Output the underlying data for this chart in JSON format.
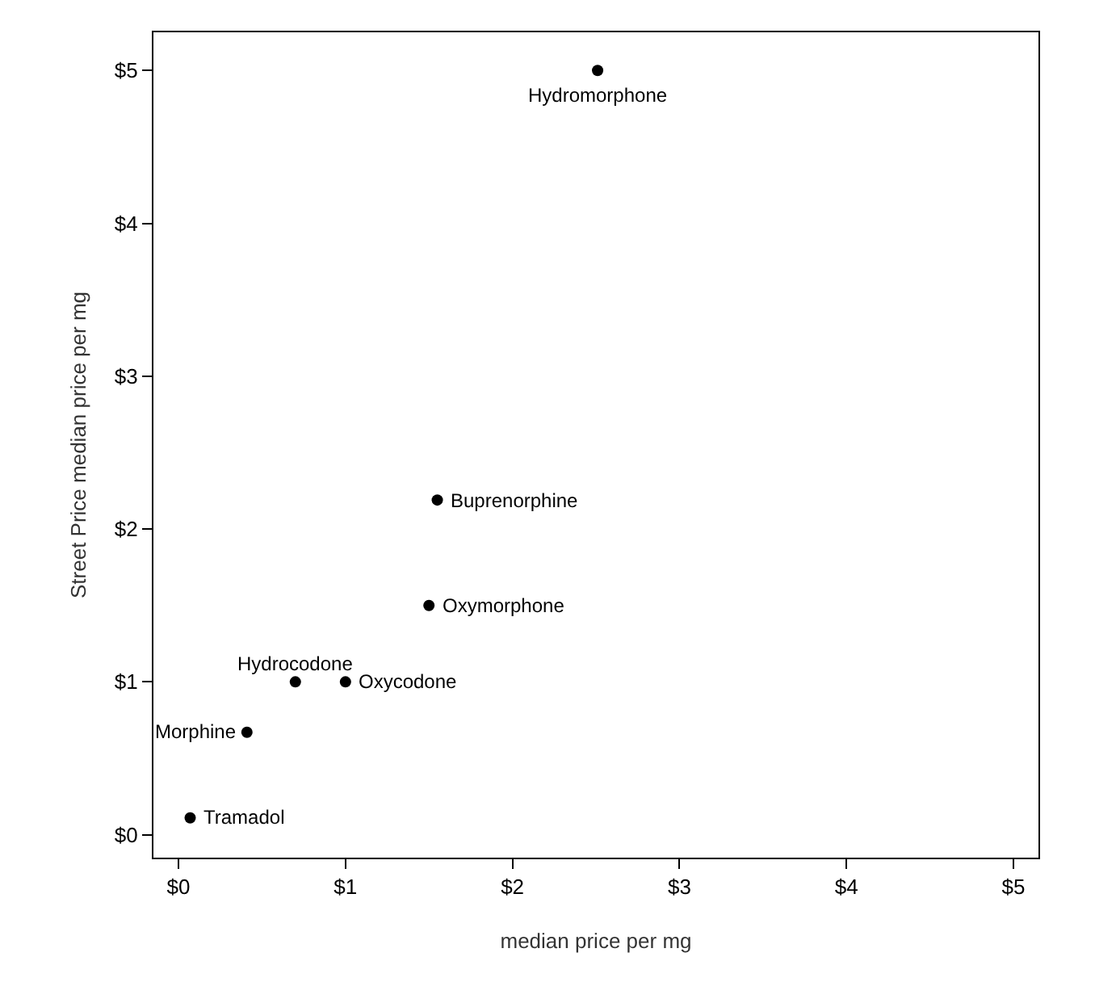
{
  "chart_data": {
    "type": "scatter",
    "xlabel": "median price per mg",
    "ylabel": "Street Price median price per mg",
    "x": [
      2.51,
      1.55,
      1.5,
      0.7,
      1.0,
      0.41,
      0.07
    ],
    "series": [
      {
        "color": "#000000",
        "values": [
          5.0,
          2.19,
          1.5,
          1.0,
          1.0,
          0.67,
          0.11
        ]
      }
    ],
    "annotations": [
      {
        "text": "Hydromorphone",
        "x": 2.51,
        "y": 5.0
      },
      {
        "text": "Buprenorphine",
        "x": 1.55,
        "y": 2.19
      },
      {
        "text": "Oxymorphone",
        "x": 1.5,
        "y": 1.5
      },
      {
        "text": "Hydrocodone",
        "x": 0.7,
        "y": 1.0
      },
      {
        "text": "Oxycodone",
        "x": 1.0,
        "y": 1.0
      },
      {
        "text": "Morphine",
        "x": 0.41,
        "y": 0.67
      },
      {
        "text": "Tramadol",
        "x": 0.07,
        "y": 0.11
      }
    ],
    "xlim": [
      -0.15,
      5.15
    ],
    "ylim": [
      -0.15,
      5.25
    ],
    "xticks": [
      {
        "value": 0,
        "label": "$0"
      },
      {
        "value": 1,
        "label": "$1"
      },
      {
        "value": 2,
        "label": "$2"
      },
      {
        "value": 3,
        "label": "$3"
      },
      {
        "value": 4,
        "label": "$4"
      },
      {
        "value": 5,
        "label": "$5"
      }
    ],
    "yticks": [
      {
        "value": 0,
        "label": "$0"
      },
      {
        "value": 1,
        "label": "$1"
      },
      {
        "value": 2,
        "label": "$2"
      },
      {
        "value": 3,
        "label": "$3"
      },
      {
        "value": 4,
        "label": "$4"
      },
      {
        "value": 5,
        "label": "$5"
      }
    ],
    "marker": "circle"
  }
}
